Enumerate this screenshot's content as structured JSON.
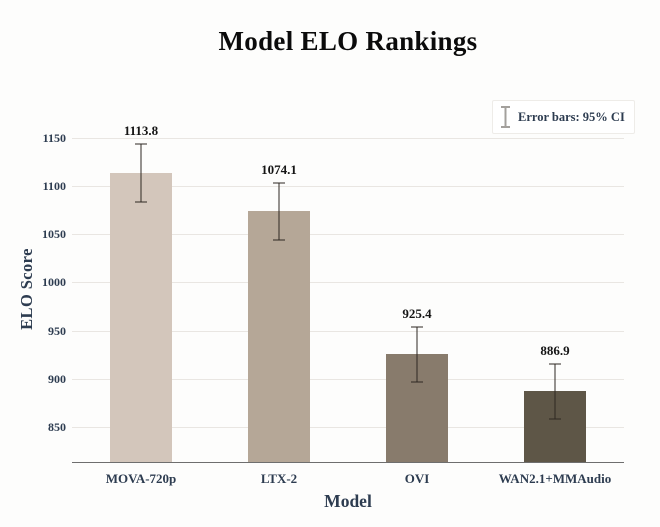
{
  "figure": {
    "title": "Model ELO Rankings",
    "legend_label": "Error bars: 95% CI",
    "x_axis_title": "Model",
    "y_axis_title": "ELO Score"
  },
  "chart_data": {
    "type": "bar",
    "title": "Model ELO Rankings",
    "xlabel": "Model",
    "ylabel": "ELO Score",
    "categories": [
      "MOVA-720p",
      "LTX-2",
      "OVI",
      "WAN2.1+MMAudio"
    ],
    "values": [
      1113.8,
      1074.1,
      925.4,
      886.9
    ],
    "error_95ci": [
      30.0,
      29.5,
      28.5,
      28.5
    ],
    "value_label_decimals": 1,
    "bar_colors": [
      "#d3c6bb",
      "#b5a797",
      "#887b6c",
      "#5e5647"
    ],
    "y_ticks": [
      850,
      900,
      950,
      1000,
      1050,
      1100,
      1150
    ],
    "ylim": [
      813.5,
      1200
    ],
    "grid": true,
    "legend": {
      "label": "Error bars: 95% CI",
      "position": "top-right"
    }
  },
  "style": {
    "grid_color": "#e9e6e2",
    "axis_line_color": "#6e6e6e",
    "error_bar_color": "rgba(45,40,34,0.5)",
    "axis_text_color": "#2d3c50",
    "title_color": "#0b0b0b",
    "value_label_color": "#151515",
    "background": "#fdfdfc"
  }
}
